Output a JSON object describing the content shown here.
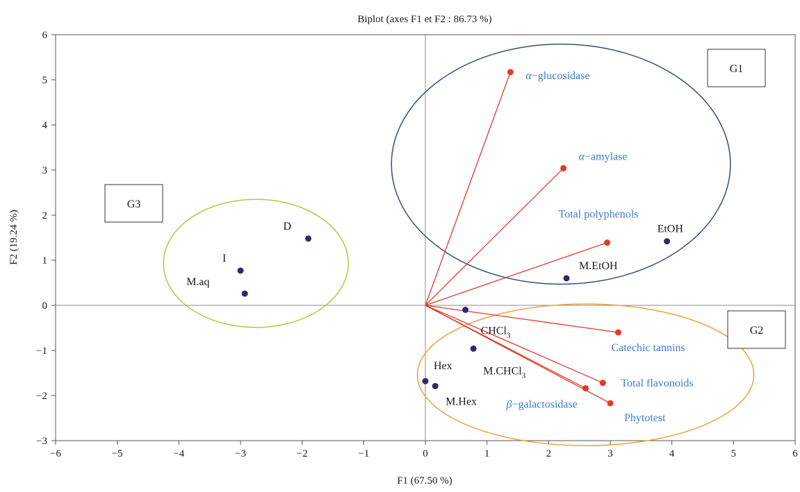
{
  "chart_data": {
    "type": "scatter",
    "title": "Biplot (axes F1 et F2 : 86.73 %)",
    "xlabel": "F1 (67.50 %)",
    "ylabel": "F2 (19.24 %)",
    "xlim": [
      -6,
      6
    ],
    "ylim": [
      -3,
      6
    ],
    "xticks": [
      -6,
      -5,
      -4,
      -3,
      -2,
      -1,
      0,
      1,
      2,
      3,
      4,
      5,
      6
    ],
    "yticks": [
      -3,
      -2,
      -1,
      0,
      1,
      2,
      3,
      4,
      5,
      6
    ],
    "tick_labels_x": [
      "−6",
      "−5",
      "−4",
      "−3",
      "−2",
      "−1",
      "0",
      "1",
      "2",
      "3",
      "4",
      "5",
      "6"
    ],
    "tick_labels_y": [
      "−3",
      "−2",
      "−1",
      "0",
      "1",
      "2",
      "3",
      "4",
      "5",
      "6"
    ],
    "grid": false,
    "origin_lines": true,
    "colors": {
      "observation": "#2b2a6e",
      "variable": "#e03a2a",
      "variable_label": "#3d7cc9",
      "g1_ellipse": "#2f4f7a",
      "g2_ellipse": "#f0a040",
      "g3_ellipse": "#a6cf3a"
    },
    "series": [
      {
        "kind": "observations",
        "points": [
          {
            "label": "D",
            "x": -1.9,
            "y": 1.48
          },
          {
            "label": "I",
            "x": -3.0,
            "y": 0.77
          },
          {
            "label": "M.aq",
            "x": -2.93,
            "y": 0.26
          },
          {
            "label": "EtOH",
            "x": 3.92,
            "y": 1.42
          },
          {
            "label": "M.EtOH",
            "x": 2.29,
            "y": 0.6
          },
          {
            "label": "CHCl",
            "sub": "3",
            "x": 0.65,
            "y": -0.1
          },
          {
            "label": "M.CHCl",
            "sub": "3",
            "x": 0.78,
            "y": -0.96
          },
          {
            "label": "Hex",
            "x": 0.0,
            "y": -1.68
          },
          {
            "label": "M.Hex",
            "x": 0.16,
            "y": -1.79
          }
        ]
      },
      {
        "kind": "variables",
        "points": [
          {
            "label": "α−glucosidase",
            "x": 1.38,
            "y": 5.17
          },
          {
            "label": "α−amylase",
            "x": 2.24,
            "y": 3.04
          },
          {
            "label": "Total polyphenols",
            "x": 2.95,
            "y": 1.39
          },
          {
            "label": "Catechic tannins",
            "x": 3.13,
            "y": -0.6
          },
          {
            "label": "Total flavonoids",
            "x": 2.88,
            "y": -1.72
          },
          {
            "label": "β−galactosidase",
            "x": 2.6,
            "y": -1.84
          },
          {
            "label": "Phytotest",
            "x": 3.0,
            "y": -2.17
          }
        ]
      }
    ],
    "groups": [
      {
        "label": "G1",
        "cx": 2.2,
        "cy": 3.13,
        "rx": 2.75,
        "ry": 2.66
      },
      {
        "label": "G2",
        "cx": 2.6,
        "cy": -1.54,
        "rx": 2.73,
        "ry": 1.57
      },
      {
        "label": "G3",
        "cx": -2.75,
        "cy": 0.93,
        "rx": 1.5,
        "ry": 1.42
      }
    ]
  }
}
